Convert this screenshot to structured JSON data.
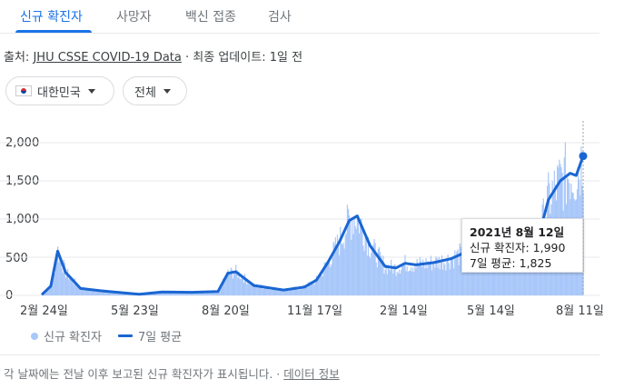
{
  "tabs": [
    {
      "label": "신규 확진자"
    },
    {
      "label": "사망자"
    },
    {
      "label": "백신 접종"
    },
    {
      "label": "검사"
    }
  ],
  "source": {
    "prefix": "출처:",
    "link": "JHU CSSE COVID-19 Data",
    "sep": "·",
    "updated": "최종 업데이트: 1일 전"
  },
  "filters": {
    "region": "대한민국",
    "scope": "전체"
  },
  "colors": {
    "accent": "#1a73e8",
    "bar": "#a8c7fa",
    "line": "#1a66d2"
  },
  "tooltip": {
    "date": "2021년 8월 12일",
    "cases_line": "신규 확진자: 1,990",
    "avg_line": "7일 평균: 1,825"
  },
  "legend": {
    "bars_label": "신규 확진자",
    "line_label": "7일 평균"
  },
  "footer": {
    "note": "각 날짜에는 전날 이후 보고된 신규 확진자가 표시됩니다.",
    "sep": "·",
    "link": "데이터 정보"
  },
  "chart_data": {
    "type": "bar",
    "ylim": [
      0,
      2000
    ],
    "yticks": [
      "2,000",
      "1,500",
      "1,000",
      "500",
      "0"
    ],
    "xticks": [
      "2월 24일",
      "5월 23일",
      "8월 20일",
      "11월 17일",
      "2월 14일",
      "5월 14일",
      "8월 11일"
    ],
    "x": [
      "2020-02-15",
      "2020-02-24",
      "2020-03-02",
      "2020-03-10",
      "2020-03-25",
      "2020-04-15",
      "2020-05-10",
      "2020-05-23",
      "2020-06-15",
      "2020-07-15",
      "2020-08-10",
      "2020-08-20",
      "2020-08-28",
      "2020-09-15",
      "2020-10-15",
      "2020-11-05",
      "2020-11-17",
      "2020-11-28",
      "2020-12-10",
      "2020-12-20",
      "2020-12-28",
      "2021-01-10",
      "2021-01-25",
      "2021-02-05",
      "2021-02-14",
      "2021-02-25",
      "2021-03-15",
      "2021-04-01",
      "2021-04-15",
      "2021-04-25",
      "2021-05-14",
      "2021-06-01",
      "2021-06-20",
      "2021-07-01",
      "2021-07-08",
      "2021-07-20",
      "2021-07-30",
      "2021-08-05",
      "2021-08-12"
    ],
    "series": [
      {
        "name": "7일 평균",
        "values": [
          10,
          120,
          580,
          300,
          90,
          60,
          30,
          15,
          45,
          40,
          50,
          290,
          310,
          130,
          70,
          110,
          200,
          420,
          700,
          980,
          1040,
          650,
          380,
          360,
          420,
          400,
          430,
          480,
          560,
          620,
          550,
          580,
          500,
          900,
          1250,
          1500,
          1600,
          1570,
          1825
        ]
      }
    ]
  }
}
